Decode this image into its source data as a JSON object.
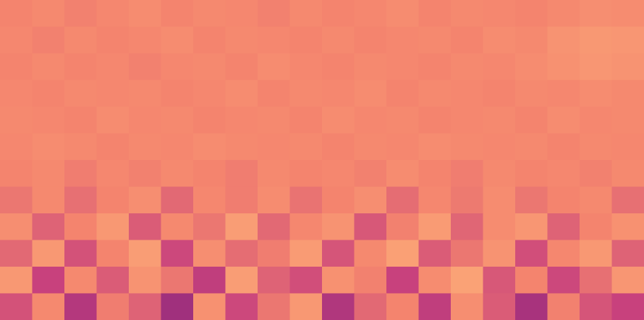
{
  "chart_data": {
    "type": "heatmap",
    "tick_labels": false,
    "xlim": [
      0,
      20
    ],
    "ylim": [
      0,
      12
    ],
    "zlim": [
      0,
      1
    ],
    "cells": [
      [
        0.7,
        0.72,
        0.69,
        0.71,
        0.73,
        0.7,
        0.72,
        0.71,
        0.69,
        0.72,
        0.7,
        0.71,
        0.73,
        0.7,
        0.72,
        0.71,
        0.7,
        0.72,
        0.74,
        0.73
      ],
      [
        0.71,
        0.69,
        0.72,
        0.7,
        0.71,
        0.73,
        0.7,
        0.72,
        0.71,
        0.7,
        0.72,
        0.7,
        0.71,
        0.72,
        0.7,
        0.73,
        0.72,
        0.76,
        0.78,
        0.77
      ],
      [
        0.7,
        0.72,
        0.7,
        0.71,
        0.69,
        0.71,
        0.72,
        0.7,
        0.73,
        0.71,
        0.7,
        0.72,
        0.71,
        0.7,
        0.72,
        0.71,
        0.73,
        0.75,
        0.77,
        0.76
      ],
      [
        0.71,
        0.7,
        0.72,
        0.71,
        0.72,
        0.7,
        0.71,
        0.73,
        0.7,
        0.72,
        0.71,
        0.73,
        0.7,
        0.72,
        0.71,
        0.7,
        0.72,
        0.71,
        0.73,
        0.72
      ],
      [
        0.72,
        0.71,
        0.7,
        0.73,
        0.71,
        0.72,
        0.7,
        0.71,
        0.72,
        0.7,
        0.73,
        0.71,
        0.72,
        0.7,
        0.71,
        0.72,
        0.7,
        0.73,
        0.71,
        0.72
      ],
      [
        0.71,
        0.73,
        0.72,
        0.7,
        0.72,
        0.71,
        0.73,
        0.72,
        0.71,
        0.72,
        0.7,
        0.72,
        0.71,
        0.73,
        0.72,
        0.71,
        0.72,
        0.7,
        0.72,
        0.71
      ],
      [
        0.7,
        0.72,
        0.68,
        0.71,
        0.69,
        0.72,
        0.7,
        0.68,
        0.72,
        0.7,
        0.71,
        0.69,
        0.73,
        0.7,
        0.68,
        0.72,
        0.7,
        0.71,
        0.69,
        0.72
      ],
      [
        0.66,
        0.72,
        0.64,
        0.7,
        0.74,
        0.62,
        0.71,
        0.68,
        0.73,
        0.65,
        0.7,
        0.74,
        0.63,
        0.71,
        0.67,
        0.73,
        0.66,
        0.7,
        0.72,
        0.64
      ],
      [
        0.74,
        0.6,
        0.7,
        0.78,
        0.58,
        0.72,
        0.66,
        0.8,
        0.62,
        0.71,
        0.76,
        0.57,
        0.69,
        0.79,
        0.61,
        0.73,
        0.77,
        0.6,
        0.7,
        0.75
      ],
      [
        0.62,
        0.78,
        0.55,
        0.7,
        0.8,
        0.52,
        0.74,
        0.63,
        0.68,
        0.79,
        0.56,
        0.72,
        0.81,
        0.58,
        0.66,
        0.76,
        0.54,
        0.71,
        0.78,
        0.6
      ],
      [
        0.78,
        0.5,
        0.72,
        0.58,
        0.76,
        0.66,
        0.48,
        0.8,
        0.6,
        0.54,
        0.75,
        0.69,
        0.5,
        0.73,
        0.82,
        0.57,
        0.7,
        0.52,
        0.64,
        0.77
      ],
      [
        0.55,
        0.72,
        0.45,
        0.68,
        0.6,
        0.4,
        0.75,
        0.52,
        0.66,
        0.78,
        0.44,
        0.62,
        0.7,
        0.48,
        0.74,
        0.58,
        0.42,
        0.69,
        0.56,
        0.5
      ]
    ]
  }
}
